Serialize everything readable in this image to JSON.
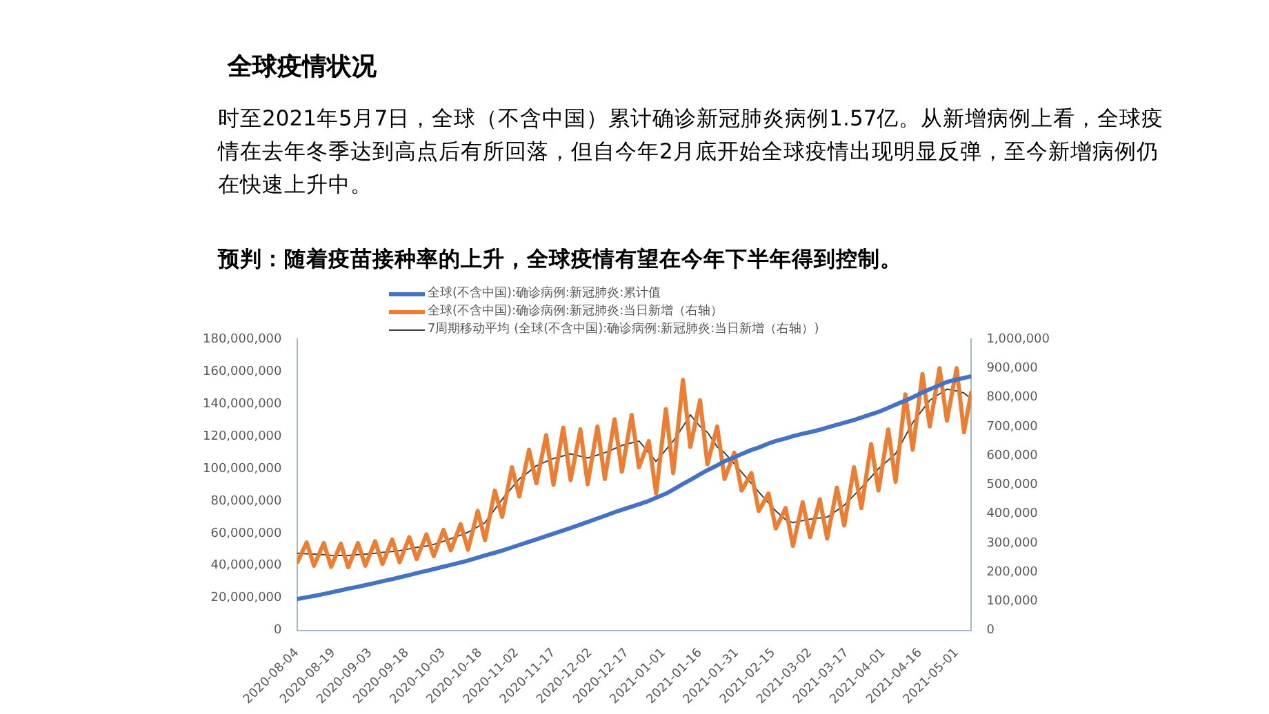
{
  "chart_data": {
    "type": "line",
    "title": "全球疫情状况",
    "subtitle": "时至2021年5月7日，全球（不含中国）累计确诊新冠肺炎病例1.57亿。从新增病例上看，全球疫情在去年冬季达到高点后有所回落，但自今年2月底开始全球疫情出现明显反弹，至今新增病例仍在快速上升中。",
    "annotations": [
      "预判：随着疫苗接种率的上升，全球疫情有望在今年下半年得到控制。"
    ],
    "x": [
      "2020-08-04",
      "2020-08-08",
      "2020-08-11",
      "2020-08-15",
      "2020-08-18",
      "2020-08-22",
      "2020-08-25",
      "2020-08-29",
      "2020-09-01",
      "2020-09-05",
      "2020-09-08",
      "2020-09-12",
      "2020-09-15",
      "2020-09-19",
      "2020-09-22",
      "2020-09-26",
      "2020-09-29",
      "2020-10-03",
      "2020-10-06",
      "2020-10-10",
      "2020-10-13",
      "2020-10-17",
      "2020-10-20",
      "2020-10-24",
      "2020-10-27",
      "2020-10-31",
      "2020-11-03",
      "2020-11-07",
      "2020-11-10",
      "2020-11-14",
      "2020-11-17",
      "2020-11-21",
      "2020-11-24",
      "2020-11-28",
      "2020-12-01",
      "2020-12-05",
      "2020-12-08",
      "2020-12-12",
      "2020-12-15",
      "2020-12-19",
      "2020-12-22",
      "2020-12-26",
      "2020-12-29",
      "2021-01-02",
      "2021-01-05",
      "2021-01-09",
      "2021-01-12",
      "2021-01-16",
      "2021-01-19",
      "2021-01-23",
      "2021-01-26",
      "2021-01-30",
      "2021-02-02",
      "2021-02-06",
      "2021-02-09",
      "2021-02-13",
      "2021-02-16",
      "2021-02-20",
      "2021-02-23",
      "2021-02-27",
      "2021-03-02",
      "2021-03-06",
      "2021-03-09",
      "2021-03-13",
      "2021-03-16",
      "2021-03-20",
      "2021-03-23",
      "2021-03-27",
      "2021-03-30",
      "2021-04-03",
      "2021-04-06",
      "2021-04-10",
      "2021-04-13",
      "2021-04-17",
      "2021-04-20",
      "2021-04-24",
      "2021-04-27",
      "2021-05-01",
      "2021-05-04",
      "2021-05-07"
    ],
    "series": [
      {
        "name": "全球(不含中国):确诊病例:新冠肺炎:累计值",
        "color": "#4472c4",
        "values": [
          19400000,
          20500000,
          21300000,
          22500000,
          23500000,
          24800000,
          25800000,
          27000000,
          28000000,
          29300000,
          30400000,
          31700000,
          32800000,
          34200000,
          35400000,
          36800000,
          37900000,
          39400000,
          40500000,
          42000000,
          43200000,
          45000000,
          46400000,
          48000000,
          49300000,
          51300000,
          52800000,
          54800000,
          56300000,
          58300000,
          59800000,
          61800000,
          63300000,
          65400000,
          67000000,
          69200000,
          70800000,
          73000000,
          74600000,
          76500000,
          78000000,
          80000000,
          82000000,
          84500000,
          87000000,
          90500000,
          93000000,
          96500000,
          99000000,
          102000000,
          104500000,
          107000000,
          109000000,
          111500000,
          113000000,
          115500000,
          117000000,
          118600000,
          120000000,
          121500000,
          122500000,
          124000000,
          125300000,
          127000000,
          128300000,
          130000000,
          131500000,
          133500000,
          135000000,
          137500000,
          139500000,
          142000000,
          144000000,
          147000000,
          149000000,
          151500000,
          153500000,
          155000000,
          156000000,
          157000000
        ]
      },
      {
        "name": "全球(不含中国):确诊病例:新冠肺炎:当日新增（右轴）",
        "color": "#ed7d31",
        "axis": "y2",
        "values": [
          230000,
          302000,
          222000,
          300000,
          218000,
          298000,
          217000,
          300000,
          222000,
          306000,
          228000,
          312000,
          234000,
          320000,
          245000,
          330000,
          255000,
          345000,
          275000,
          365000,
          277000,
          410000,
          310000,
          480000,
          390000,
          560000,
          460000,
          620000,
          505000,
          670000,
          500000,
          696000,
          516000,
          690000,
          502000,
          700000,
          520000,
          725000,
          545000,
          740000,
          560000,
          650000,
          470000,
          760000,
          540000,
          860000,
          630000,
          790000,
          570000,
          700000,
          520000,
          610000,
          480000,
          540000,
          410000,
          470000,
          350000,
          420000,
          290000,
          440000,
          320000,
          450000,
          315000,
          490000,
          360000,
          560000,
          420000,
          640000,
          480000,
          690000,
          510000,
          810000,
          620000,
          880000,
          700000,
          900000,
          720000,
          900000,
          680000,
          820000
        ]
      },
      {
        "name": "7周期移动平均 (全球(不含中国):确诊病例:新冠肺炎:当日新增（右轴）)",
        "color": "#404040",
        "axis": "y2",
        "values": [
          265000,
          263000,
          262000,
          260000,
          258000,
          257000,
          257000,
          260000,
          262000,
          265000,
          268000,
          271000,
          274000,
          280000,
          285000,
          290000,
          295000,
          306000,
          315000,
          327000,
          337000,
          356000,
          370000,
          416000,
          450000,
          490000,
          520000,
          545000,
          565000,
          580000,
          590000,
          599000,
          606000,
          598000,
          592000,
          602000,
          610000,
          624000,
          635000,
          644000,
          650000,
          610000,
          580000,
          620000,
          650000,
          700000,
          740000,
          700000,
          680000,
          630000,
          610000,
          572000,
          543000,
          504000,
          475000,
          438000,
          410000,
          380000,
          370000,
          377000,
          382000,
          386000,
          389000,
          412000,
          430000,
          464000,
          490000,
          527000,
          555000,
          584000,
          606000,
          667000,
          713000,
          757000,
          790000,
          812000,
          828000,
          822000,
          815000,
          794000
        ]
      }
    ],
    "xlim": [
      "2020-08-04",
      "2021-05-07"
    ],
    "xticks": [
      "2020-08-04",
      "2020-08-19",
      "2020-09-03",
      "2020-09-18",
      "2020-10-03",
      "2020-10-18",
      "2020-11-02",
      "2020-11-17",
      "2020-12-02",
      "2020-12-17",
      "2021-01-01",
      "2021-01-16",
      "2021-01-31",
      "2021-02-15",
      "2021-03-02",
      "2021-03-17",
      "2021-04-01",
      "2021-04-16",
      "2021-05-01"
    ],
    "ylim": [
      0,
      180000000
    ],
    "yticks": [
      0,
      {
        "value": 20000000,
        "label": "20,000,000"
      },
      {
        "value": 40000000,
        "label": "40,000,000"
      },
      {
        "value": 60000000,
        "label": "60,000,000"
      },
      {
        "value": 80000000,
        "label": "80,000,000"
      },
      {
        "value": 100000000,
        "label": "100,000,000"
      },
      {
        "value": 120000000,
        "label": "120,000,000"
      },
      {
        "value": 140000000,
        "label": "140,000,000"
      },
      {
        "value": 160000000,
        "label": "160,000,000"
      },
      {
        "value": 180000000,
        "label": "180,000,000"
      }
    ],
    "y2lim": [
      0,
      1000000
    ],
    "y2ticks": [
      0,
      {
        "value": 100000,
        "label": "100,000"
      },
      {
        "value": 200000,
        "label": "200,000"
      },
      {
        "value": 300000,
        "label": "300,000"
      },
      {
        "value": 400000,
        "label": "400,000"
      },
      {
        "value": 500000,
        "label": "500,000"
      },
      {
        "value": 600000,
        "label": "600,000"
      },
      {
        "value": 700000,
        "label": "700,000"
      },
      {
        "value": 800000,
        "label": "800,000"
      },
      {
        "value": 900000,
        "label": "900,000"
      },
      {
        "value": 1000000,
        "label": "1,000,000"
      }
    ],
    "grid": false,
    "legend": "top",
    "marker": "none",
    "line_style": "solid"
  }
}
